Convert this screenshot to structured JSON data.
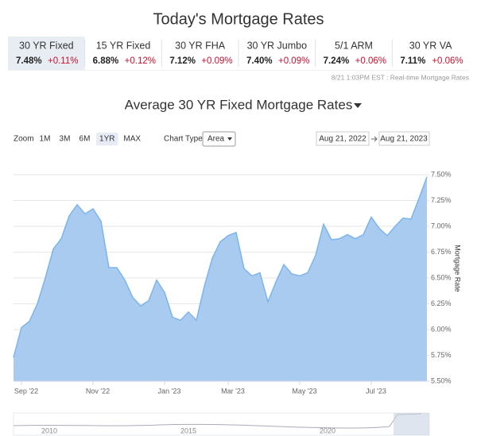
{
  "header": {
    "title": "Today's Mortgage Rates",
    "tabs": [
      {
        "name": "30 YR Fixed",
        "rate": "7.48%",
        "change": "+0.11%"
      },
      {
        "name": "15 YR Fixed",
        "rate": "6.88%",
        "change": "+0.12%"
      },
      {
        "name": "30 YR FHA",
        "rate": "7.12%",
        "change": "+0.09%"
      },
      {
        "name": "30 YR Jumbo",
        "rate": "7.40%",
        "change": "+0.09%"
      },
      {
        "name": "5/1 ARM",
        "rate": "7.24%",
        "change": "+0.06%"
      },
      {
        "name": "30 YR VA",
        "rate": "7.11%",
        "change": "+0.06%"
      }
    ],
    "selected_tab": 0,
    "timestamp": "8/21 1:03PM EST : Real-time Mortgage Rates"
  },
  "controls": {
    "zoom_label": "Zoom",
    "zoom_buttons": [
      "1M",
      "3M",
      "6M",
      "1YR",
      "MAX"
    ],
    "active_zoom": 3,
    "chart_type_label": "Chart Type",
    "chart_type": "Area",
    "date_from": "Aug 21, 2022",
    "date_to": "Aug 21, 2023"
  },
  "navigator": {
    "labels": [
      "2010",
      "2015",
      "2020"
    ]
  },
  "chart_data": {
    "type": "area",
    "title": "Average 30 YR Fixed Mortgage Rates",
    "y_label": "Mortgage Rate",
    "categories": [
      null,
      "Sep '22",
      null,
      null,
      null,
      null,
      null,
      null,
      null,
      null,
      "Nov '22",
      null,
      null,
      null,
      null,
      null,
      null,
      null,
      null,
      "Jan '23",
      null,
      null,
      null,
      null,
      null,
      null,
      null,
      "Mar '23",
      null,
      null,
      null,
      null,
      null,
      null,
      null,
      null,
      "May '23",
      null,
      null,
      null,
      null,
      null,
      null,
      null,
      null,
      "Jul '23",
      null,
      null,
      null,
      null,
      null,
      null,
      null
    ],
    "values": [
      5.73,
      6.02,
      6.08,
      6.25,
      6.5,
      6.78,
      6.88,
      7.1,
      7.21,
      7.12,
      7.17,
      7.05,
      6.6,
      6.6,
      6.48,
      6.31,
      6.23,
      6.28,
      6.48,
      6.36,
      6.12,
      6.09,
      6.17,
      6.09,
      6.42,
      6.69,
      6.85,
      6.91,
      6.94,
      6.59,
      6.52,
      6.55,
      6.27,
      6.46,
      6.63,
      6.54,
      6.52,
      6.55,
      6.72,
      7.02,
      6.87,
      6.88,
      6.92,
      6.88,
      6.92,
      7.09,
      6.98,
      6.91,
      7.0,
      7.08,
      7.07,
      7.27,
      7.48
    ],
    "color": "#7cb5ec",
    "fill": "#a9cbf0",
    "ylim": [
      5.5,
      7.6
    ],
    "yticks": [
      {
        "value": 5.5,
        "label": "5.50%"
      },
      {
        "value": 5.75,
        "label": "5.75%"
      },
      {
        "value": 6.0,
        "label": "6.00%"
      },
      {
        "value": 6.25,
        "label": "6.25%"
      },
      {
        "value": 6.5,
        "label": "6.50%"
      },
      {
        "value": 6.75,
        "label": "6.75%"
      },
      {
        "value": 7.0,
        "label": "7.00%"
      },
      {
        "value": 7.25,
        "label": "7.25%"
      },
      {
        "value": 7.5,
        "label": "7.50%"
      }
    ],
    "grid": true
  }
}
